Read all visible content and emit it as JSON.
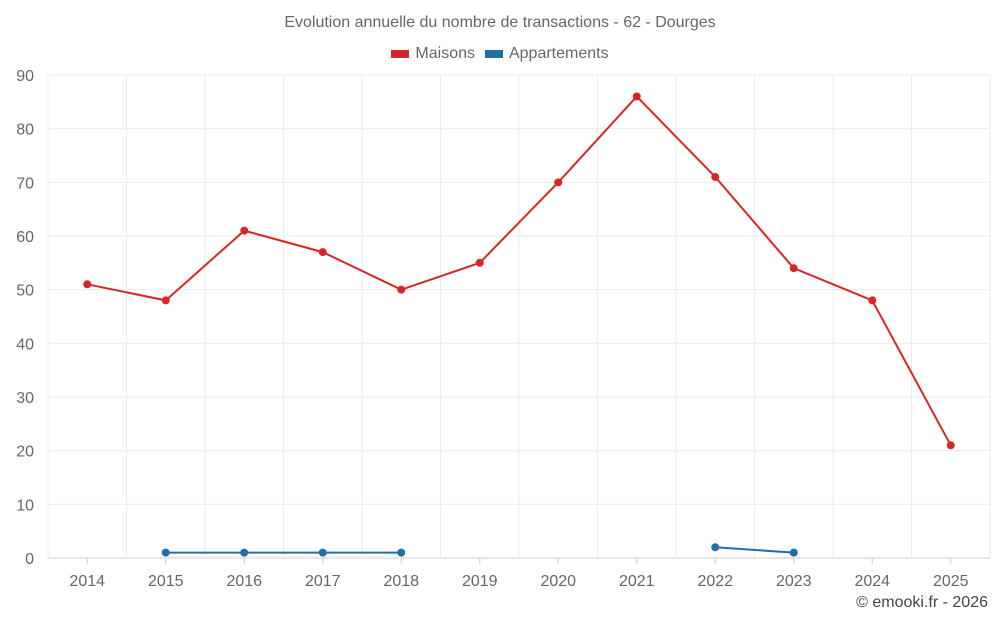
{
  "chart_data": {
    "type": "line",
    "title": "Evolution annuelle du nombre de transactions - 62 - Dourges",
    "categories": [
      "2014",
      "2015",
      "2016",
      "2017",
      "2018",
      "2019",
      "2020",
      "2021",
      "2022",
      "2023",
      "2024",
      "2025"
    ],
    "series": [
      {
        "name": "Maisons",
        "color": "#d62728",
        "values": [
          51,
          48,
          61,
          57,
          50,
          55,
          70,
          86,
          71,
          54,
          48,
          21
        ]
      },
      {
        "name": "Appartements",
        "color": "#1f6fa8",
        "values": [
          null,
          1,
          1,
          1,
          1,
          null,
          null,
          null,
          2,
          1,
          null,
          null
        ]
      }
    ],
    "ylim": [
      0,
      90
    ],
    "yticks": [
      0,
      10,
      20,
      30,
      40,
      50,
      60,
      70,
      80,
      90
    ],
    "grid": true,
    "legend_position": "top-center",
    "xlabel": "",
    "ylabel": ""
  },
  "credit": "© emooki.fr - 2026"
}
